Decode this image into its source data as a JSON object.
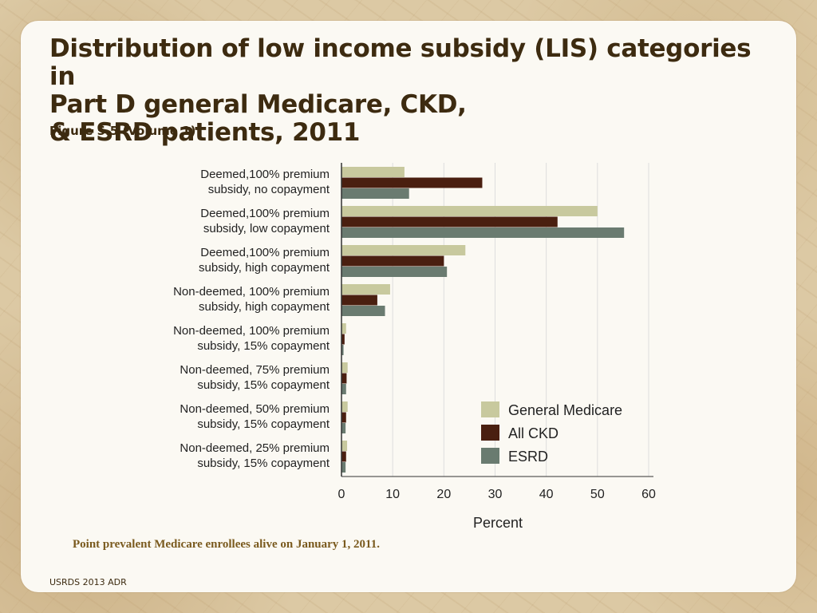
{
  "slide": {
    "title_lines": [
      "Distribution of low income subsidy (LIS) categories in",
      "Part D general Medicare, CKD,",
      "& ESRD patients, 2011"
    ],
    "subtitle": "Figure 5.5 (Volume 1)",
    "note": "Point prevalent Medicare enrollees alive on January 1, 2011.",
    "footer": "USRDS 2013 ADR"
  },
  "chart_data": {
    "type": "bar",
    "orientation": "horizontal",
    "categories": [
      [
        "Deemed,100% premium",
        "subsidy, no copayment"
      ],
      [
        "Deemed,100% premium",
        "subsidy, low copayment"
      ],
      [
        "Deemed,100% premium",
        "subsidy, high copayment"
      ],
      [
        "Non-deemed, 100% premium",
        "subsidy, high copayment"
      ],
      [
        "Non-deemed, 100% premium",
        "subsidy, 15% copayment"
      ],
      [
        "Non-deemed, 75% premium",
        "subsidy, 15% copayment"
      ],
      [
        "Non-deemed, 50% premium",
        "subsidy, 15% copayment"
      ],
      [
        "Non-deemed, 25% premium",
        "subsidy, 15% copayment"
      ]
    ],
    "series": [
      {
        "name": "General Medicare",
        "color": "#c8c99e",
        "values": [
          12.3,
          50.0,
          24.2,
          9.5,
          0.9,
          1.2,
          1.2,
          1.1
        ]
      },
      {
        "name": "All CKD",
        "color": "#4a1f10",
        "values": [
          27.5,
          42.2,
          20.0,
          7.0,
          0.6,
          1.0,
          0.9,
          0.9
        ]
      },
      {
        "name": "ESRD",
        "color": "#6a7b70",
        "values": [
          13.2,
          55.2,
          20.6,
          8.5,
          0.4,
          0.9,
          0.8,
          0.8
        ]
      }
    ],
    "xlabel": "Percent",
    "xlim": [
      0,
      60
    ],
    "xticks": [
      0,
      10,
      20,
      30,
      40,
      50,
      60
    ],
    "grid": true,
    "legend": "bottom-right"
  }
}
